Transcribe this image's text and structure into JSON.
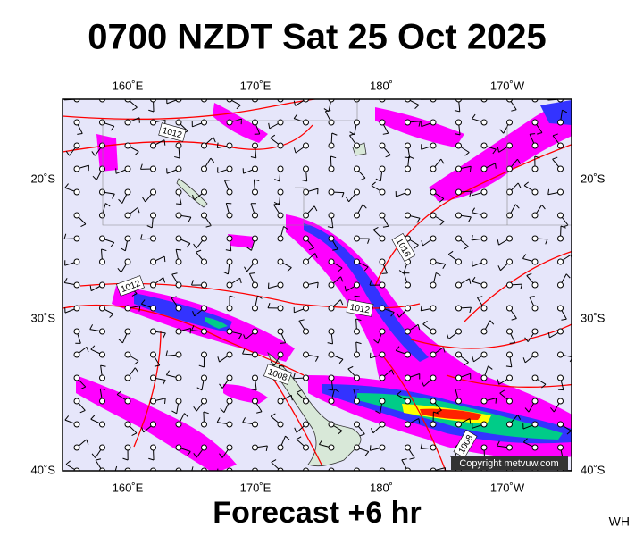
{
  "header": {
    "title": "0700 NZDT Sat 25 Oct 2025"
  },
  "map": {
    "lon_labels_top": [
      "160˚E",
      "170˚E",
      "180˚",
      "170˚W"
    ],
    "lon_labels_bottom": [
      "160˚E",
      "170˚E",
      "180˚",
      "170˚W"
    ],
    "lat_labels_left": [
      "20˚S",
      "30˚S",
      "40˚S"
    ],
    "lat_labels_right": [
      "20˚S",
      "30˚S",
      "40˚S"
    ],
    "isobar_labels": [
      "1012",
      "1016",
      "1012",
      "1012",
      "1008",
      "1008"
    ],
    "copyright": "Copyright metvuw.com"
  },
  "footer": {
    "forecast": "Forecast +6 hr",
    "initials": "WH"
  }
}
